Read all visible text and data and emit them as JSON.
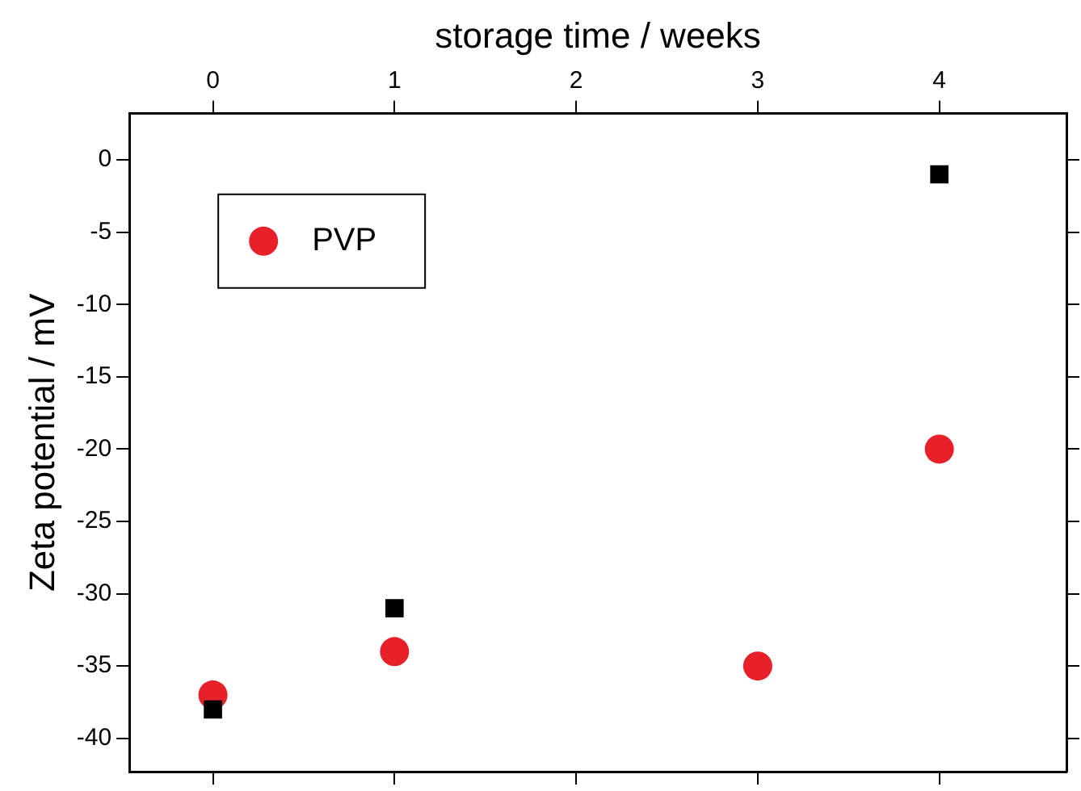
{
  "chart_data": {
    "type": "scatter",
    "xlabel": "storage time / weeks",
    "ylabel": "Zeta potential / mV",
    "xlim": [
      -0.46,
      4.7
    ],
    "xticks": [
      0,
      1,
      2,
      3,
      4
    ],
    "ylim": [
      -42.3,
      3.2
    ],
    "yticks": [
      0,
      -5,
      -10,
      -15,
      -20,
      -25,
      -30,
      -35,
      -40
    ],
    "legend": "top left",
    "grid": false,
    "series": [
      {
        "color": "#000000",
        "marker": "square",
        "x": [
          0,
          1,
          4
        ],
        "values": [
          -38,
          -31,
          -1
        ]
      },
      {
        "name": "PVP",
        "color": "#e8202a",
        "marker": "circle",
        "x": [
          0,
          1,
          3,
          4
        ],
        "values": [
          -37,
          -34,
          -35,
          -20
        ]
      }
    ]
  }
}
